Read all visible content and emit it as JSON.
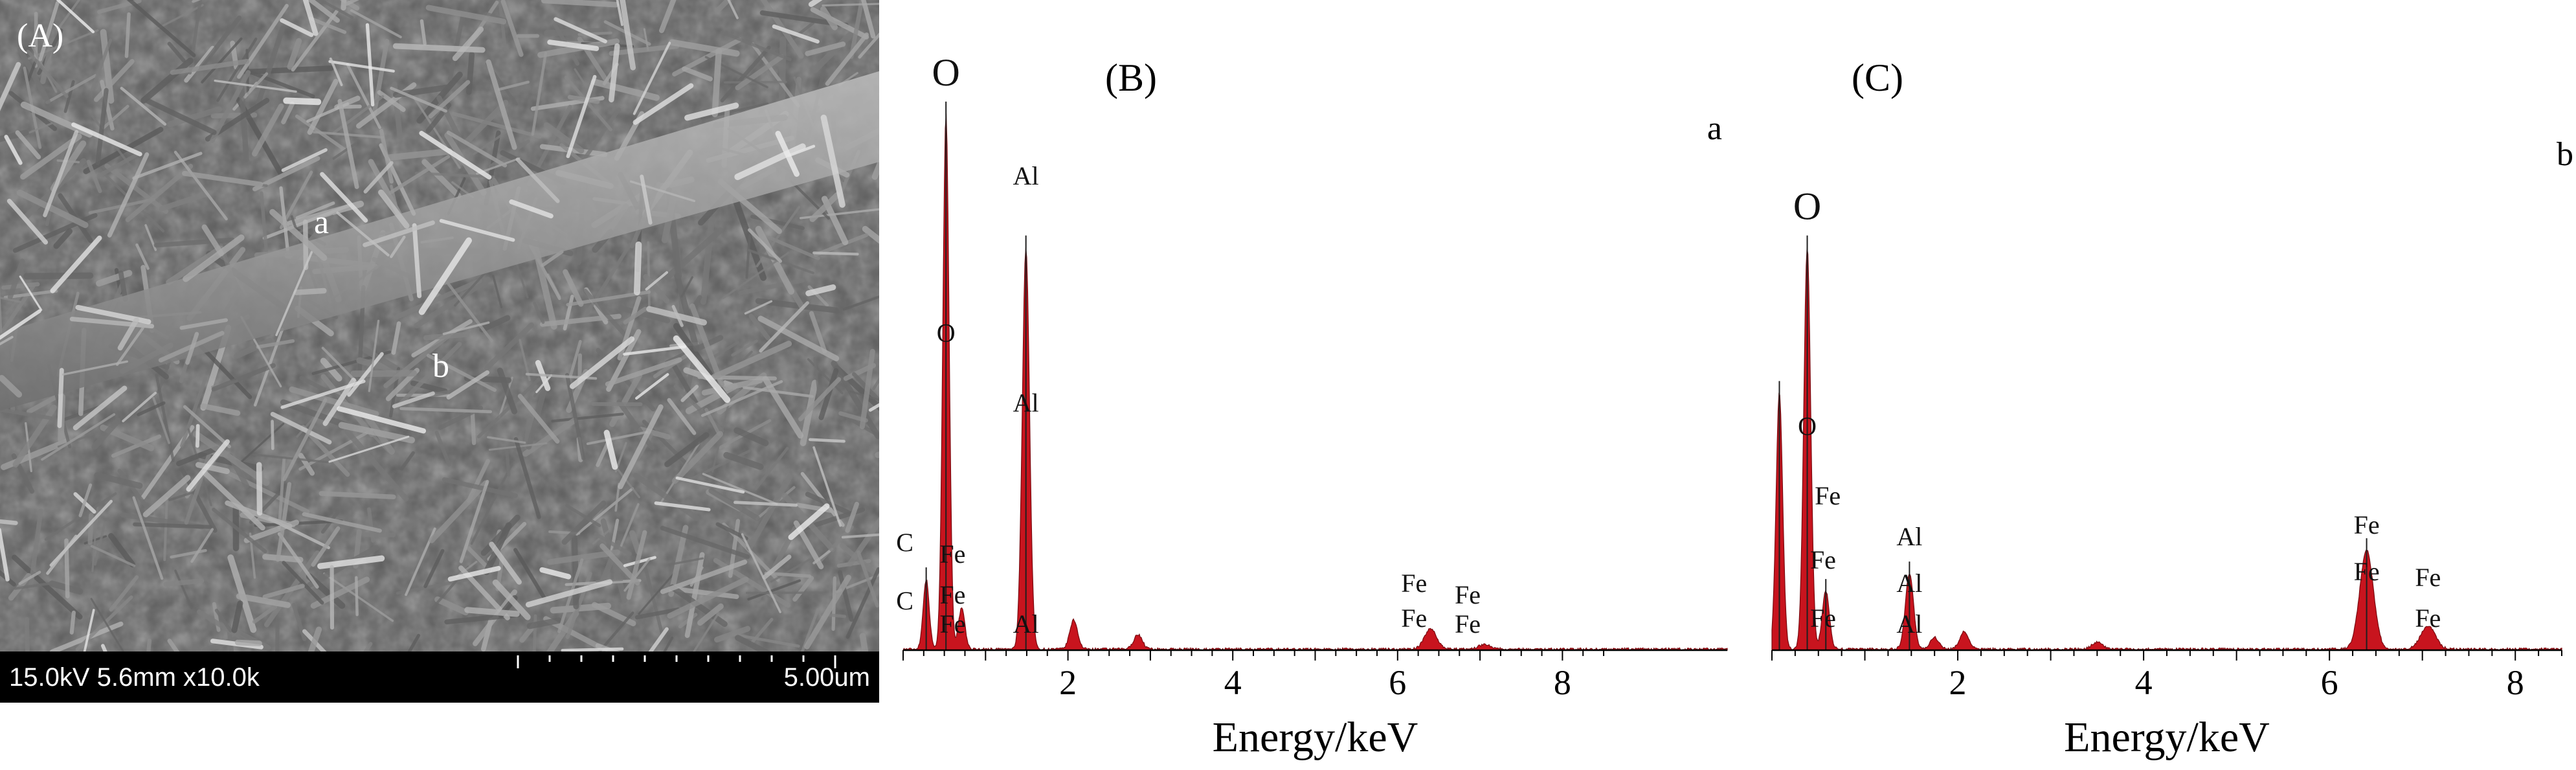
{
  "panel_a": {
    "panel_label": "(A)",
    "point_labels": [
      "a",
      "b"
    ],
    "info_bar": {
      "parameters": "15.0kV 5.6mm x10.0k",
      "scale_bar": "5.00um"
    }
  },
  "chart_data": [
    {
      "type": "area",
      "panel_label": "(B)",
      "spot_label": "a",
      "xlabel": "Energy/keV",
      "ylabel": "",
      "xlim": [
        0,
        10
      ],
      "ylim": [
        0,
        1.05
      ],
      "xticks": [
        2,
        4,
        6,
        8
      ],
      "series_color": "#c8141e",
      "peaks": [
        {
          "x": 0.28,
          "y": 0.12
        },
        {
          "x": 0.52,
          "y": 0.92
        },
        {
          "x": 0.71,
          "y": 0.07
        },
        {
          "x": 1.49,
          "y": 0.69
        },
        {
          "x": 2.07,
          "y": 0.05
        },
        {
          "x": 2.85,
          "y": 0.025
        },
        {
          "x": 6.4,
          "y": 0.035
        },
        {
          "x": 7.06,
          "y": 0.008
        }
      ],
      "annotations": [
        {
          "text": "O",
          "x": 0.52,
          "y": 0.97,
          "size": "large"
        },
        {
          "text": "O",
          "x": 0.52,
          "y": 0.53,
          "size": "small"
        },
        {
          "text": "Al",
          "x": 1.49,
          "y": 0.8,
          "size": "small"
        },
        {
          "text": "Al",
          "x": 1.49,
          "y": 0.41,
          "size": "small"
        },
        {
          "text": "Al",
          "x": 1.49,
          "y": 0.03,
          "size": "small"
        },
        {
          "text": "C",
          "x": 0.02,
          "y": 0.17,
          "size": "small"
        },
        {
          "text": "C",
          "x": 0.02,
          "y": 0.07,
          "size": "small"
        },
        {
          "text": "Fe",
          "x": 0.6,
          "y": 0.15,
          "size": "small"
        },
        {
          "text": "Fe",
          "x": 0.6,
          "y": 0.08,
          "size": "small"
        },
        {
          "text": "Fe",
          "x": 0.6,
          "y": 0.03,
          "size": "small"
        },
        {
          "text": "Fe",
          "x": 6.2,
          "y": 0.1,
          "size": "small"
        },
        {
          "text": "Fe",
          "x": 6.2,
          "y": 0.04,
          "size": "small"
        },
        {
          "text": "Fe",
          "x": 6.85,
          "y": 0.08,
          "size": "small"
        },
        {
          "text": "Fe",
          "x": 6.85,
          "y": 0.03,
          "size": "small"
        }
      ]
    },
    {
      "type": "area",
      "panel_label": "(C)",
      "spot_label": "b",
      "xlabel": "Energy/keV",
      "ylabel": "",
      "xlim": [
        0,
        8.5
      ],
      "ylim": [
        0,
        1.05
      ],
      "xticks": [
        2,
        4,
        6,
        8
      ],
      "series_color": "#c8141e",
      "peaks": [
        {
          "x": 0.08,
          "y": 0.44
        },
        {
          "x": 0.38,
          "y": 0.69
        },
        {
          "x": 0.58,
          "y": 0.1
        },
        {
          "x": 1.48,
          "y": 0.13
        },
        {
          "x": 1.75,
          "y": 0.02
        },
        {
          "x": 2.07,
          "y": 0.03
        },
        {
          "x": 3.5,
          "y": 0.012
        },
        {
          "x": 6.4,
          "y": 0.17
        },
        {
          "x": 7.06,
          "y": 0.04
        }
      ],
      "annotations": [
        {
          "text": "O",
          "x": 0.38,
          "y": 0.74,
          "size": "large"
        },
        {
          "text": "O",
          "x": 0.38,
          "y": 0.37,
          "size": "small"
        },
        {
          "text": "Fe",
          "x": 0.6,
          "y": 0.25,
          "size": "small"
        },
        {
          "text": "Fe",
          "x": 0.55,
          "y": 0.14,
          "size": "small"
        },
        {
          "text": "Fe",
          "x": 0.55,
          "y": 0.04,
          "size": "small"
        },
        {
          "text": "Al",
          "x": 1.48,
          "y": 0.18,
          "size": "small"
        },
        {
          "text": "Al",
          "x": 1.48,
          "y": 0.1,
          "size": "small"
        },
        {
          "text": "Al",
          "x": 1.48,
          "y": 0.03,
          "size": "small"
        },
        {
          "text": "Fe",
          "x": 6.4,
          "y": 0.2,
          "size": "small"
        },
        {
          "text": "Fe",
          "x": 6.4,
          "y": 0.12,
          "size": "small"
        },
        {
          "text": "Fe",
          "x": 7.06,
          "y": 0.11,
          "size": "small"
        },
        {
          "text": "Fe",
          "x": 7.06,
          "y": 0.04,
          "size": "small"
        }
      ]
    }
  ]
}
